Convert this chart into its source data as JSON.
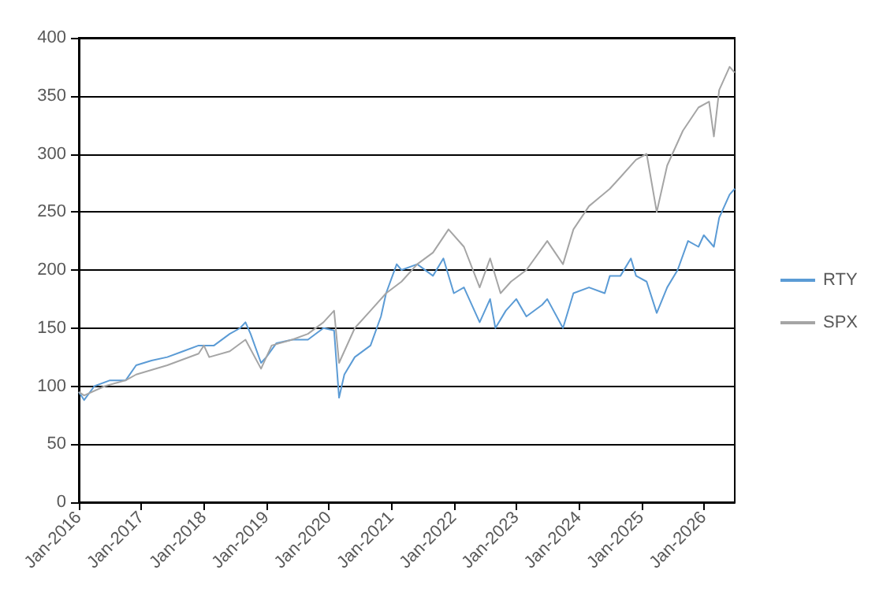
{
  "chart_data": {
    "type": "line",
    "ylim": [
      0,
      400
    ],
    "yticks": [
      0,
      50,
      100,
      150,
      200,
      250,
      300,
      350,
      400
    ],
    "xlim": [
      "2016-01",
      "2026-07"
    ],
    "xticks": [
      {
        "value": "2016-01",
        "label": "Jan-2016"
      },
      {
        "value": "2017-01",
        "label": "Jan-2017"
      },
      {
        "value": "2018-01",
        "label": "Jan-2018"
      },
      {
        "value": "2019-01",
        "label": "Jan-2019"
      },
      {
        "value": "2020-01",
        "label": "Jan-2020"
      },
      {
        "value": "2021-01",
        "label": "Jan-2021"
      },
      {
        "value": "2022-01",
        "label": "Jan-2022"
      },
      {
        "value": "2023-01",
        "label": "Jan-2023"
      },
      {
        "value": "2024-01",
        "label": "Jan-2024"
      },
      {
        "value": "2025-01",
        "label": "Jan-2025"
      },
      {
        "value": "2026-01",
        "label": "Jan-2026"
      }
    ],
    "grid": "y",
    "legend": "right",
    "marker": "none",
    "line_style": "solid",
    "series": [
      {
        "name": "RTY",
        "color": "#5b9bd5",
        "x": [
          "2016-01",
          "2016-02",
          "2016-04",
          "2016-07",
          "2016-10",
          "2016-12",
          "2017-03",
          "2017-06",
          "2017-09",
          "2017-12",
          "2018-03",
          "2018-06",
          "2018-08",
          "2018-09",
          "2018-10",
          "2018-12",
          "2019-01",
          "2019-03",
          "2019-06",
          "2019-09",
          "2019-12",
          "2020-02",
          "2020-03",
          "2020-04",
          "2020-06",
          "2020-09",
          "2020-11",
          "2020-12",
          "2021-02",
          "2021-03",
          "2021-06",
          "2021-09",
          "2021-11",
          "2022-01",
          "2022-03",
          "2022-06",
          "2022-08",
          "2022-09",
          "2022-11",
          "2023-01",
          "2023-03",
          "2023-06",
          "2023-07",
          "2023-10",
          "2023-12",
          "2024-03",
          "2024-06",
          "2024-07",
          "2024-09",
          "2024-11",
          "2024-12",
          "2025-02",
          "2025-04",
          "2025-06",
          "2025-08",
          "2025-10",
          "2025-12",
          "2026-01",
          "2026-03",
          "2026-04",
          "2026-06",
          "2026-07"
        ],
        "values": [
          95,
          88,
          100,
          105,
          105,
          118,
          122,
          125,
          130,
          135,
          135,
          145,
          150,
          155,
          145,
          120,
          125,
          137,
          140,
          140,
          150,
          148,
          90,
          110,
          125,
          135,
          160,
          180,
          205,
          200,
          205,
          195,
          210,
          180,
          185,
          155,
          175,
          150,
          165,
          175,
          160,
          170,
          175,
          150,
          180,
          185,
          180,
          195,
          195,
          210,
          195,
          190,
          163,
          185,
          200,
          225,
          220,
          230,
          220,
          245,
          265,
          270
        ]
      },
      {
        "name": "SPX",
        "color": "#a5a5a5",
        "x": [
          "2016-01",
          "2016-02",
          "2016-06",
          "2016-10",
          "2016-12",
          "2017-06",
          "2017-12",
          "2018-01",
          "2018-02",
          "2018-06",
          "2018-09",
          "2018-12",
          "2019-02",
          "2019-06",
          "2019-09",
          "2019-12",
          "2020-02",
          "2020-03",
          "2020-06",
          "2020-09",
          "2020-12",
          "2021-03",
          "2021-06",
          "2021-09",
          "2021-12",
          "2022-03",
          "2022-06",
          "2022-08",
          "2022-10",
          "2022-12",
          "2023-03",
          "2023-07",
          "2023-10",
          "2023-12",
          "2024-03",
          "2024-07",
          "2024-09",
          "2024-12",
          "2025-02",
          "2025-04",
          "2025-06",
          "2025-09",
          "2025-12",
          "2026-02",
          "2026-03",
          "2026-04",
          "2026-06",
          "2026-07"
        ],
        "values": [
          95,
          92,
          100,
          105,
          110,
          118,
          128,
          135,
          125,
          130,
          140,
          115,
          135,
          140,
          145,
          155,
          165,
          120,
          150,
          165,
          180,
          190,
          205,
          215,
          235,
          220,
          185,
          210,
          180,
          190,
          200,
          225,
          205,
          235,
          255,
          270,
          280,
          295,
          300,
          250,
          290,
          320,
          340,
          345,
          315,
          355,
          375,
          370
        ]
      }
    ]
  }
}
